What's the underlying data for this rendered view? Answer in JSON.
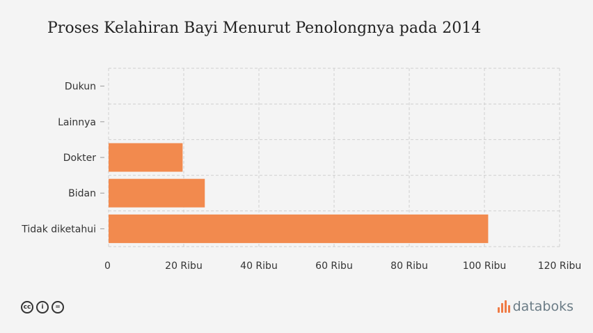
{
  "chart_data": {
    "type": "bar",
    "orientation": "horizontal",
    "title": "Proses Kelahiran Bayi Menurut Penolongnya pada 2014",
    "categories": [
      "Dukun",
      "Lainnya",
      "Dokter",
      "Bidan",
      "Tidak diketahui"
    ],
    "values": [
      0,
      0,
      19700,
      25600,
      101000
    ],
    "xlim": [
      0,
      120000
    ],
    "xticks": [
      {
        "value": 0,
        "label": "0"
      },
      {
        "value": 20000,
        "label": "20 Ribu"
      },
      {
        "value": 40000,
        "label": "40 Ribu"
      },
      {
        "value": 60000,
        "label": "60 Ribu"
      },
      {
        "value": 80000,
        "label": "80 Ribu"
      },
      {
        "value": 100000,
        "label": "100 Ribu"
      },
      {
        "value": 120000,
        "label": "120 Ribu"
      }
    ],
    "bar_color": "#f28a4e",
    "grid": true
  },
  "footer": {
    "license_icons": [
      "cc-icon",
      "by-icon",
      "nd-icon"
    ],
    "license_glyphs": [
      "cc",
      "i",
      "="
    ],
    "brand": "databoks",
    "brand_color": "#ef7b45"
  }
}
